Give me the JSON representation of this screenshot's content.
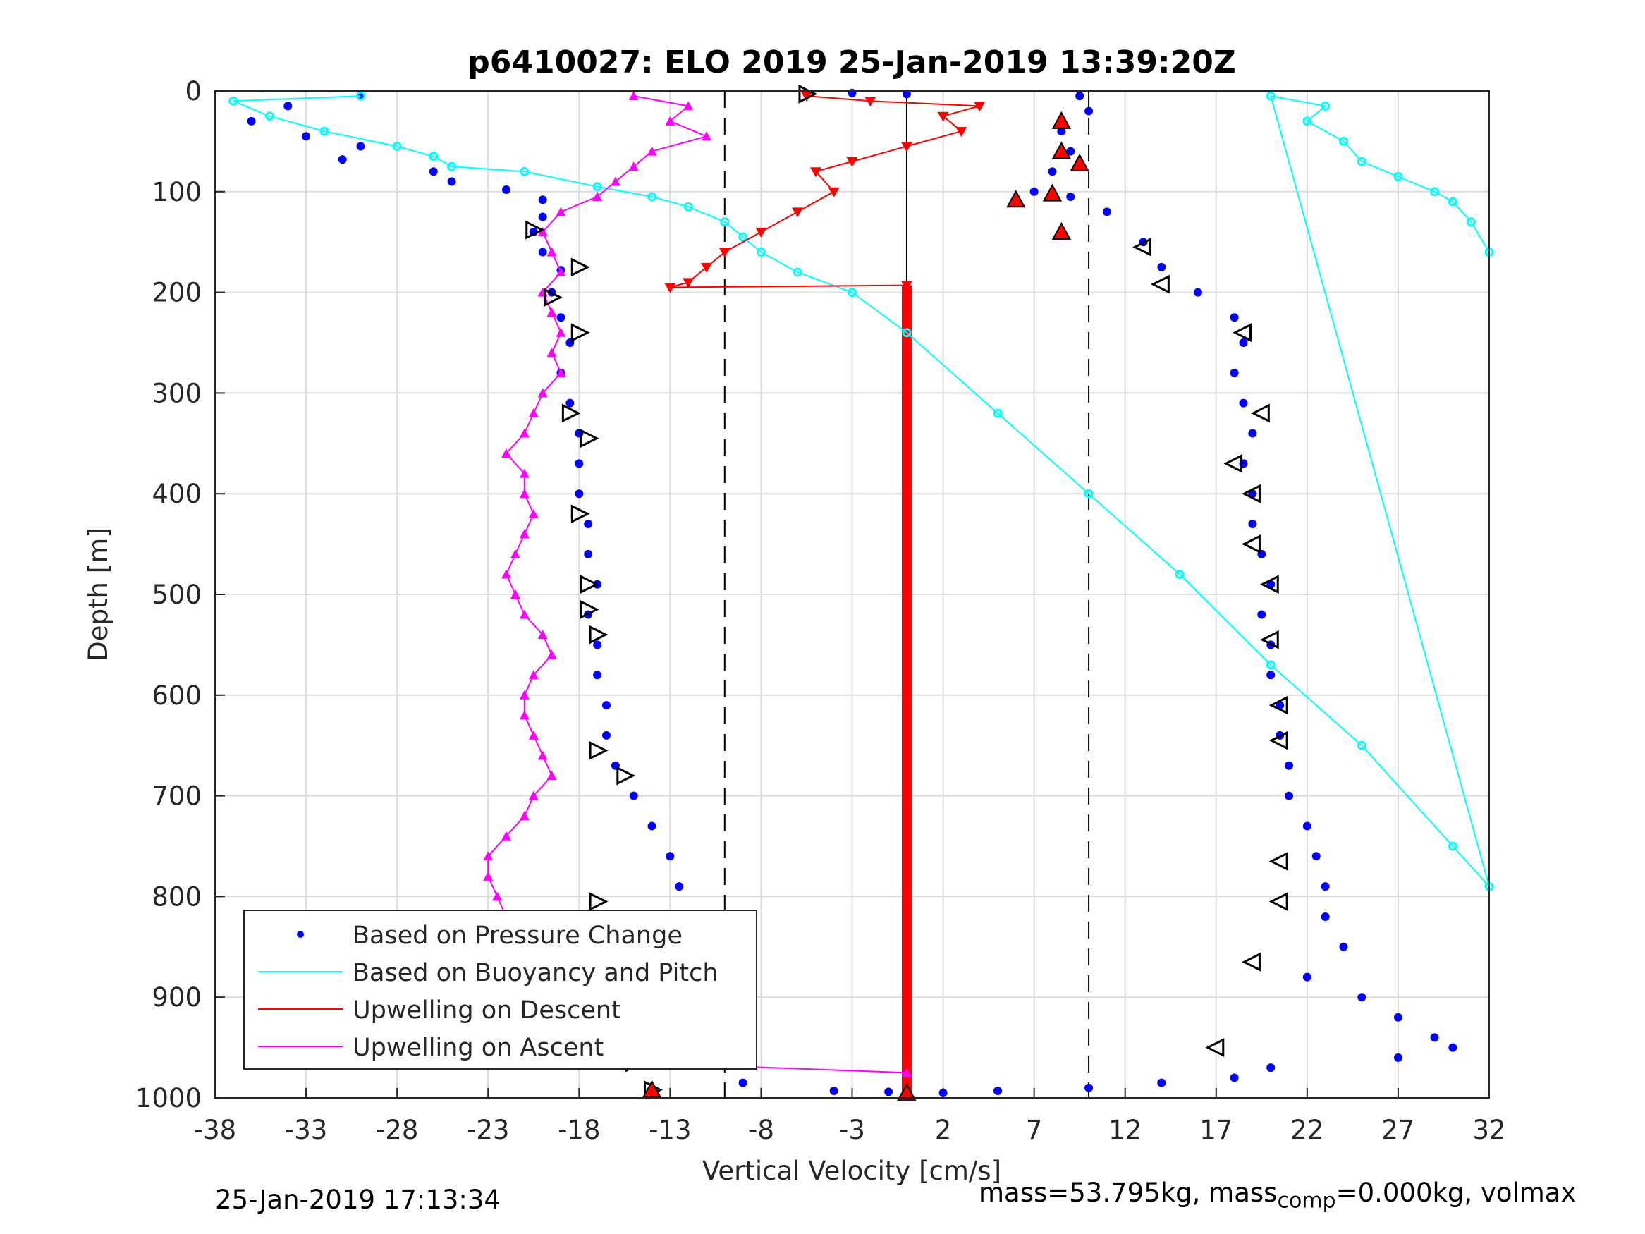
{
  "chart_data": {
    "type": "scatter",
    "title": "p6410027: ELO 2019 25-Jan-2019 13:39:20Z",
    "xlabel": "Vertical Velocity [cm/s]",
    "ylabel": "Depth [m]",
    "xlim": [
      -38,
      32
    ],
    "ylim": [
      0,
      1000
    ],
    "y_reversed": true,
    "grid": true,
    "xticks": [
      -38,
      -33,
      -28,
      -23,
      -18,
      -13,
      -8,
      -3,
      2,
      7,
      12,
      17,
      22,
      27,
      32
    ],
    "yticks": [
      0,
      100,
      200,
      300,
      400,
      500,
      600,
      700,
      800,
      900,
      1000
    ],
    "legend_position": "bottom-left",
    "legend": [
      "Based on Pressure Change",
      "Based on Buoyancy and Pitch",
      "Upwelling on Descent",
      "Upwelling on Ascent"
    ],
    "reference_lines_x": [
      -10,
      0,
      10
    ],
    "series": [
      {
        "name": "Based on Pressure Change",
        "color": "#0000ff",
        "points": [
          [
            -30,
            5
          ],
          [
            -34,
            15
          ],
          [
            -36,
            30
          ],
          [
            -33,
            45
          ],
          [
            -30,
            55
          ],
          [
            -31,
            68
          ],
          [
            -26,
            80
          ],
          [
            -25,
            90
          ],
          [
            -22,
            98
          ],
          [
            -20,
            108
          ],
          [
            -20,
            125
          ],
          [
            -20.5,
            140
          ],
          [
            -20,
            160
          ],
          [
            -19,
            178
          ],
          [
            -19.5,
            200
          ],
          [
            -19,
            225
          ],
          [
            -18.5,
            250
          ],
          [
            -19,
            280
          ],
          [
            -18.5,
            310
          ],
          [
            -18,
            340
          ],
          [
            -18,
            370
          ],
          [
            -18,
            400
          ],
          [
            -17.5,
            430
          ],
          [
            -17.5,
            460
          ],
          [
            -17,
            490
          ],
          [
            -17.5,
            520
          ],
          [
            -17,
            550
          ],
          [
            -17,
            580
          ],
          [
            -16.5,
            610
          ],
          [
            -16.5,
            640
          ],
          [
            -16,
            670
          ],
          [
            -15,
            700
          ],
          [
            -14,
            730
          ],
          [
            -13,
            760
          ],
          [
            -12.5,
            790
          ],
          [
            -12,
            820
          ],
          [
            -11,
            850
          ],
          [
            -11.5,
            880
          ],
          [
            -10.5,
            910
          ],
          [
            -9.5,
            940
          ],
          [
            -8.5,
            965
          ],
          [
            -9,
            985
          ],
          [
            -3,
            2
          ],
          [
            0,
            3
          ],
          [
            9.5,
            5
          ],
          [
            10,
            20
          ],
          [
            8.5,
            40
          ],
          [
            9,
            60
          ],
          [
            8,
            80
          ],
          [
            7,
            100
          ],
          [
            9,
            105
          ],
          [
            11,
            120
          ],
          [
            13,
            150
          ],
          [
            14,
            175
          ],
          [
            16,
            200
          ],
          [
            18,
            225
          ],
          [
            18.5,
            250
          ],
          [
            18,
            280
          ],
          [
            18.5,
            310
          ],
          [
            19,
            340
          ],
          [
            18.5,
            370
          ],
          [
            19,
            400
          ],
          [
            19,
            430
          ],
          [
            19.5,
            460
          ],
          [
            20,
            490
          ],
          [
            19.5,
            520
          ],
          [
            20,
            550
          ],
          [
            20,
            580
          ],
          [
            20.5,
            610
          ],
          [
            20.5,
            640
          ],
          [
            21,
            670
          ],
          [
            21,
            700
          ],
          [
            22,
            730
          ],
          [
            22.5,
            760
          ],
          [
            23,
            790
          ],
          [
            23,
            820
          ],
          [
            24,
            850
          ],
          [
            22,
            880
          ],
          [
            25,
            900
          ],
          [
            27,
            920
          ],
          [
            29,
            940
          ],
          [
            30,
            950
          ],
          [
            27,
            960
          ],
          [
            20,
            970
          ],
          [
            18,
            980
          ],
          [
            14,
            985
          ],
          [
            10,
            990
          ],
          [
            5,
            993
          ],
          [
            -4,
            993
          ],
          [
            -1,
            994
          ],
          [
            2,
            995
          ]
        ]
      },
      {
        "name": "Based on Buoyancy and Pitch",
        "color": "#00ffff",
        "points": [
          [
            -30,
            5
          ],
          [
            -37,
            10
          ],
          [
            -35,
            25
          ],
          [
            -32,
            40
          ],
          [
            -28,
            55
          ],
          [
            -26,
            65
          ],
          [
            -25,
            75
          ],
          [
            -21,
            80
          ],
          [
            -17,
            95
          ],
          [
            -14,
            105
          ],
          [
            -12,
            115
          ],
          [
            -10,
            130
          ],
          [
            -9,
            145
          ],
          [
            -8,
            160
          ],
          [
            -6,
            180
          ],
          [
            -3,
            200
          ],
          [
            0,
            240
          ],
          [
            5,
            320
          ],
          [
            10,
            400
          ],
          [
            15,
            480
          ],
          [
            20,
            570
          ],
          [
            25,
            650
          ],
          [
            30,
            750
          ],
          [
            32,
            790
          ],
          [
            20,
            5
          ],
          [
            23,
            15
          ],
          [
            22,
            30
          ],
          [
            24,
            50
          ],
          [
            25,
            70
          ],
          [
            27,
            85
          ],
          [
            29,
            100
          ],
          [
            30,
            110
          ],
          [
            31,
            130
          ],
          [
            32,
            160
          ]
        ]
      },
      {
        "name": "Upwelling on Descent",
        "color": "#ff0000",
        "points": [
          [
            -5.5,
            5
          ],
          [
            -2,
            10
          ],
          [
            4,
            15
          ],
          [
            2,
            25
          ],
          [
            3,
            40
          ],
          [
            0,
            55
          ],
          [
            -3,
            70
          ],
          [
            -5,
            80
          ],
          [
            -4,
            100
          ],
          [
            -6,
            120
          ],
          [
            -8,
            140
          ],
          [
            -10,
            160
          ],
          [
            -11,
            175
          ],
          [
            -12,
            190
          ],
          [
            -13,
            195
          ],
          [
            0,
            193
          ]
        ]
      },
      {
        "name": "Upwelling on Ascent",
        "color": "#ff00ff",
        "points": [
          [
            -15,
            5
          ],
          [
            -12,
            15
          ],
          [
            -13,
            30
          ],
          [
            -11,
            45
          ],
          [
            -14,
            60
          ],
          [
            -15,
            75
          ],
          [
            -16,
            90
          ],
          [
            -17,
            105
          ],
          [
            -19,
            120
          ],
          [
            -20,
            140
          ],
          [
            -19.5,
            160
          ],
          [
            -19,
            180
          ],
          [
            -20,
            200
          ],
          [
            -19.5,
            220
          ],
          [
            -19,
            240
          ],
          [
            -19.5,
            260
          ],
          [
            -19,
            280
          ],
          [
            -20,
            300
          ],
          [
            -20.5,
            320
          ],
          [
            -21,
            340
          ],
          [
            -22,
            360
          ],
          [
            -21,
            380
          ],
          [
            -21,
            400
          ],
          [
            -20.5,
            420
          ],
          [
            -21,
            440
          ],
          [
            -21.5,
            460
          ],
          [
            -22,
            480
          ],
          [
            -21.5,
            500
          ],
          [
            -21,
            520
          ],
          [
            -20,
            540
          ],
          [
            -19.5,
            560
          ],
          [
            -20.5,
            580
          ],
          [
            -21,
            600
          ],
          [
            -21,
            620
          ],
          [
            -20.5,
            640
          ],
          [
            -20,
            660
          ],
          [
            -19.5,
            680
          ],
          [
            -20.5,
            700
          ],
          [
            -21,
            720
          ],
          [
            -22,
            740
          ],
          [
            -23,
            760
          ],
          [
            -23,
            780
          ],
          [
            -22.5,
            800
          ],
          [
            -22,
            820
          ],
          [
            -21.5,
            840
          ],
          [
            -21,
            860
          ],
          [
            -20,
            880
          ],
          [
            -19,
            900
          ],
          [
            -18.5,
            920
          ],
          [
            -17,
            940
          ],
          [
            -16,
            955
          ],
          [
            -15,
            965
          ],
          [
            0,
            975
          ]
        ]
      }
    ],
    "open_triangles": [
      [
        -5.5,
        3
      ],
      [
        -20.5,
        138
      ],
      [
        -18,
        175
      ],
      [
        -19.5,
        205
      ],
      [
        -18,
        240
      ],
      [
        -18.5,
        320
      ],
      [
        -17.5,
        345
      ],
      [
        -18,
        420
      ],
      [
        -17.5,
        490
      ],
      [
        -17.5,
        515
      ],
      [
        -17,
        540
      ],
      [
        -17,
        655
      ],
      [
        -15.5,
        680
      ],
      [
        -17,
        805
      ],
      [
        -15.5,
        905
      ],
      [
        -15,
        965
      ],
      [
        -14,
        992
      ],
      [
        13,
        155
      ],
      [
        14,
        192
      ],
      [
        18.5,
        240
      ],
      [
        19.5,
        320
      ],
      [
        18,
        370
      ],
      [
        19,
        400
      ],
      [
        19,
        450
      ],
      [
        20,
        490
      ],
      [
        20,
        545
      ],
      [
        20.5,
        610
      ],
      [
        20.5,
        645
      ],
      [
        20.5,
        765
      ],
      [
        20.5,
        805
      ],
      [
        19,
        865
      ],
      [
        17,
        950
      ]
    ],
    "filled_red_triangles": [
      [
        8.5,
        30
      ],
      [
        8.5,
        60
      ],
      [
        9.5,
        72
      ],
      [
        6,
        108
      ],
      [
        8,
        102
      ],
      [
        8.5,
        140
      ],
      [
        0,
        995
      ],
      [
        -14,
        992
      ]
    ],
    "red_bar": {
      "x": 0,
      "from": 193,
      "to": 1000
    }
  },
  "footer": {
    "timestamp": "25-Jan-2019 17:13:34",
    "mass_prefix": "mass=53.795kg, mass",
    "mass_sub": "comp",
    "mass_suffix": "=0.000kg, volmax"
  }
}
